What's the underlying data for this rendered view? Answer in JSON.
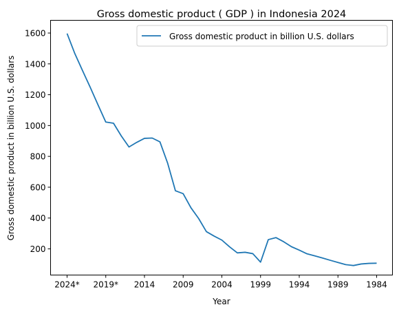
{
  "chart_data": {
    "type": "line",
    "title": "Gross domestic product ( GDP ) in Indonesia 2024",
    "xlabel": "Year",
    "ylabel": "Gross domestic product in billion U.S. dollars",
    "x_axis_reversed": true,
    "x": [
      "2024*",
      "2023*",
      "2022*",
      "2021*",
      "2020*",
      "2019*",
      "2018",
      "2017",
      "2016",
      "2015",
      "2014",
      "2013",
      "2012",
      "2011",
      "2010",
      "2009",
      "2008",
      "2007",
      "2006",
      "2005",
      "2004",
      "2003",
      "2002",
      "2001",
      "2000",
      "1999",
      "1998",
      "1997",
      "1996",
      "1995",
      "1994",
      "1993",
      "1992",
      "1991",
      "1990",
      "1989",
      "1988",
      "1987",
      "1986",
      "1985",
      "1984"
    ],
    "series": [
      {
        "name": "Gross domestic product in billion U.S. dollars",
        "color": "#1f77b4",
        "values": [
          1597,
          1467,
          1356,
          1247,
          1134,
          1023,
          1015,
          933,
          861,
          891,
          917,
          919,
          894,
          755,
          577,
          558,
          467,
          397,
          312,
          283,
          257,
          213,
          174,
          178,
          169,
          114,
          260,
          273,
          246,
          214,
          192,
          168,
          155,
          141,
          126,
          112,
          98,
          92,
          102,
          106,
          107
        ]
      }
    ],
    "xticks": [
      "2024*",
      "2019*",
      "2014",
      "2009",
      "2004",
      "1999",
      "1994",
      "1989",
      "1984"
    ],
    "yticks": [
      200,
      400,
      600,
      800,
      1000,
      1200,
      1400,
      1600
    ],
    "ylim": [
      20,
      1680
    ],
    "grid": false,
    "legend_position": "top-right"
  }
}
